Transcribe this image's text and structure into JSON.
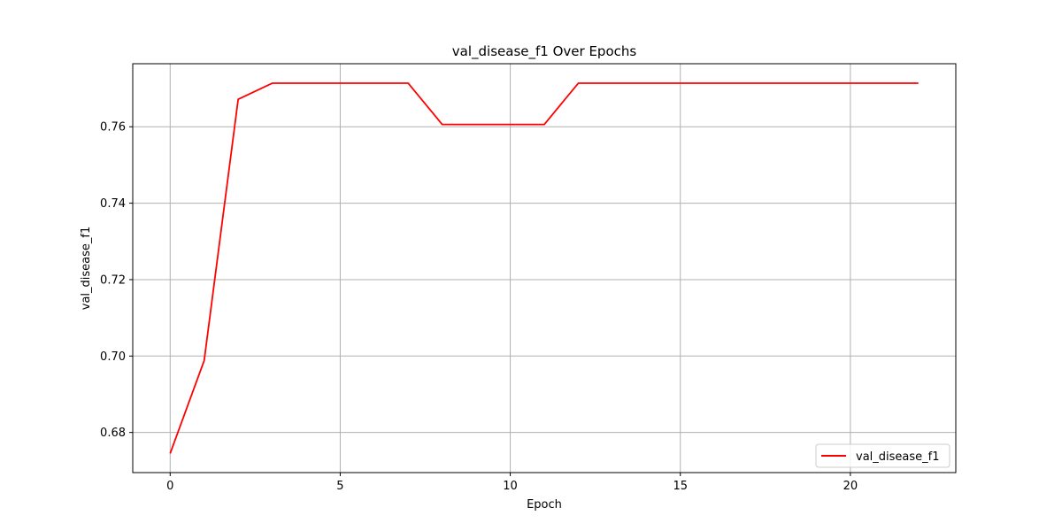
{
  "chart_data": {
    "type": "line",
    "title": "val_disease_f1 Over Epochs",
    "xlabel": "Epoch",
    "ylabel": "val_disease_f1",
    "xlim": [
      -1.1,
      23.1
    ],
    "ylim": [
      0.6695,
      0.7765
    ],
    "xticks": [
      0,
      5,
      10,
      15,
      20
    ],
    "yticks": [
      0.68,
      0.7,
      0.72,
      0.74,
      0.76
    ],
    "ytick_labels": [
      "0.68",
      "0.70",
      "0.72",
      "0.74",
      "0.76"
    ],
    "grid": true,
    "legend_position": "lower-right",
    "series": [
      {
        "name": "val_disease_f1",
        "color": "#ff0000",
        "x": [
          0,
          1,
          2,
          3,
          4,
          5,
          6,
          7,
          8,
          9,
          10,
          11,
          12,
          13,
          14,
          15,
          16,
          17,
          18,
          19,
          20,
          21,
          22
        ],
        "y": [
          0.6745,
          0.6988,
          0.7672,
          0.7714,
          0.7714,
          0.7714,
          0.7714,
          0.7714,
          0.7606,
          0.7606,
          0.7606,
          0.7606,
          0.7714,
          0.7714,
          0.7714,
          0.7714,
          0.7714,
          0.7714,
          0.7714,
          0.7714,
          0.7714,
          0.7714,
          0.7714
        ]
      }
    ]
  }
}
